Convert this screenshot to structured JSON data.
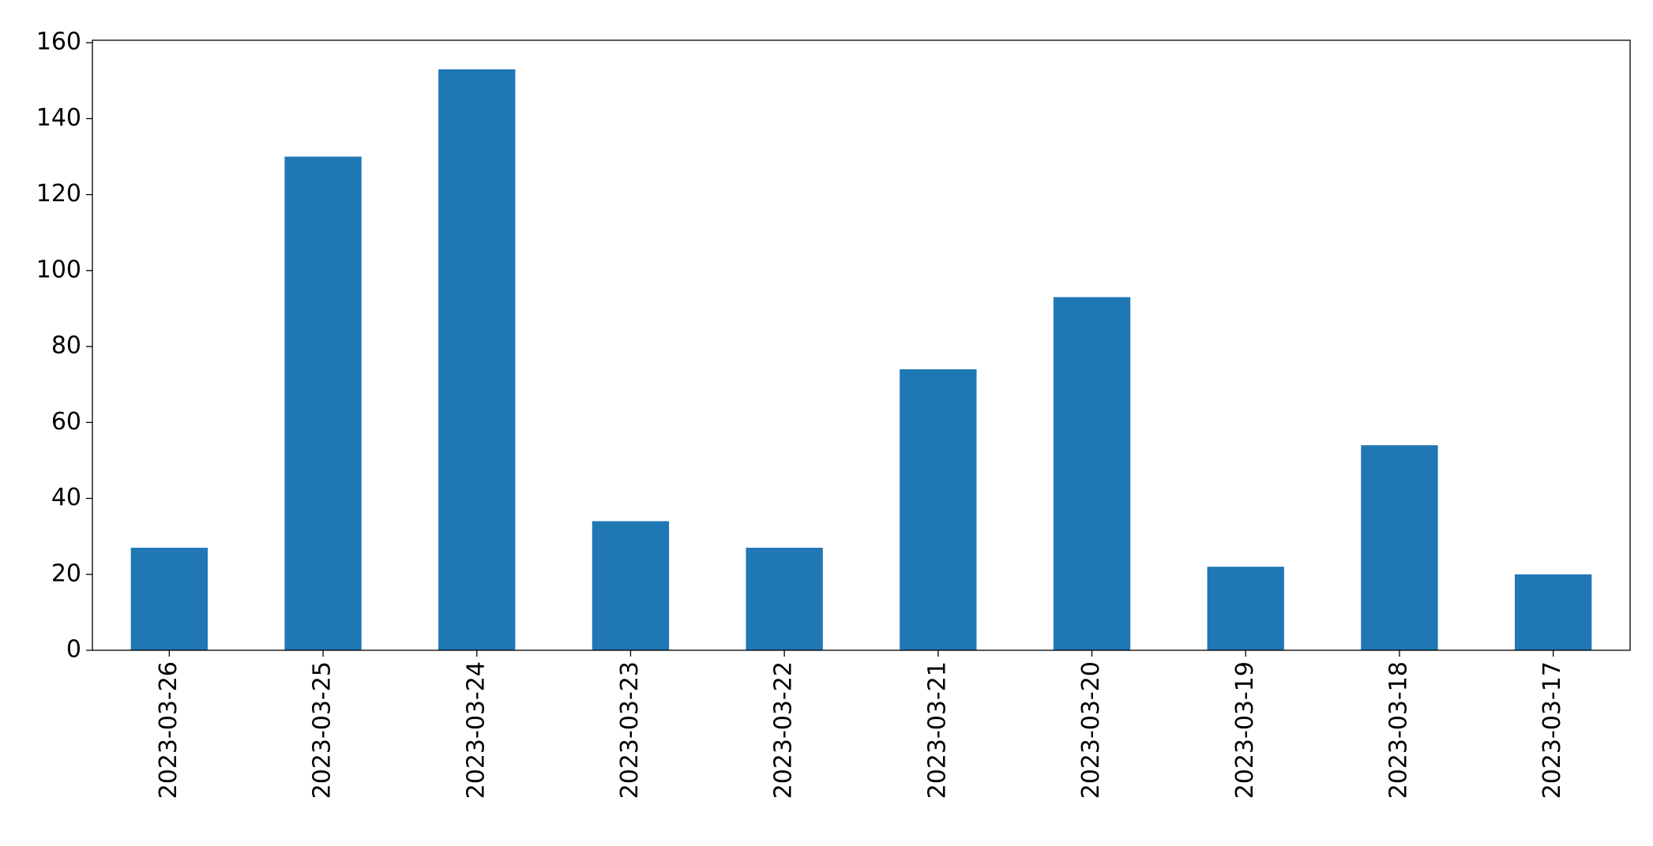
{
  "chart_data": {
    "type": "bar",
    "categories": [
      "2023-03-26",
      "2023-03-25",
      "2023-03-24",
      "2023-03-23",
      "2023-03-22",
      "2023-03-21",
      "2023-03-20",
      "2023-03-19",
      "2023-03-18",
      "2023-03-17"
    ],
    "values": [
      27,
      130,
      153,
      34,
      27,
      74,
      93,
      22,
      54,
      20
    ],
    "color": "#1f77b4",
    "ylim": [
      0,
      160.65
    ],
    "yticks": [
      0,
      20,
      40,
      60,
      80,
      100,
      120,
      140,
      160
    ],
    "grid": false
  }
}
